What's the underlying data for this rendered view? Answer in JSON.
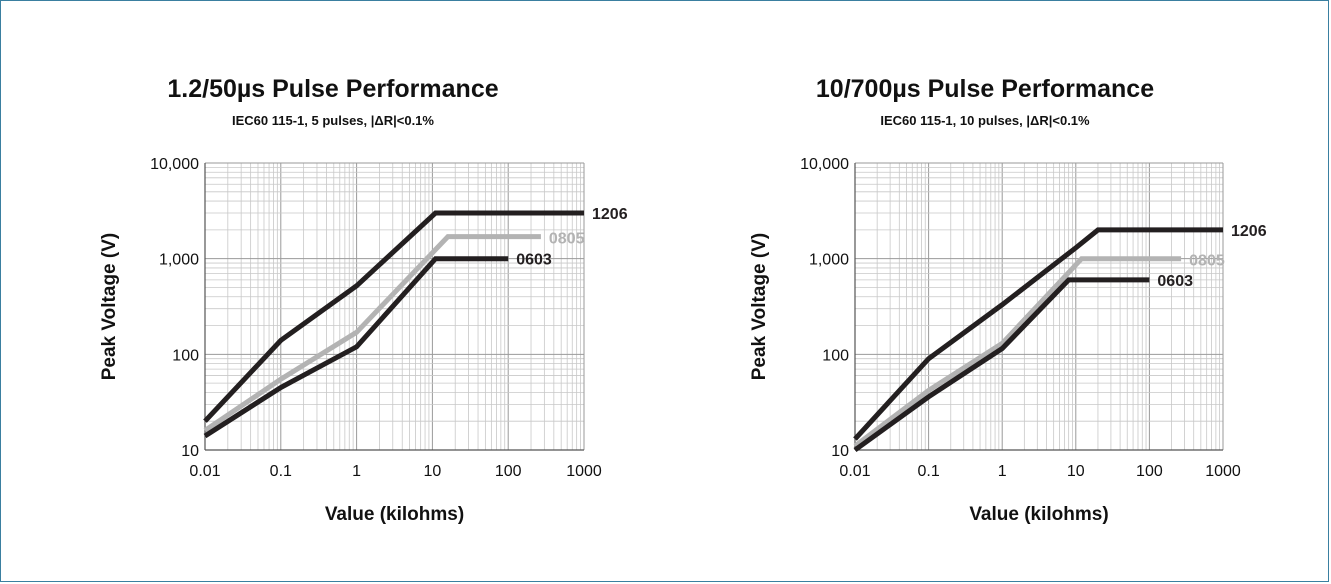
{
  "chart_data": [
    {
      "type": "line",
      "title": "1.2/50µs Pulse Performance",
      "subtitle": "IEC60 115-1, 5 pulses, |ΔR|<0.1%",
      "xlabel": "Value (kilohms)",
      "ylabel": "Peak Voltage (V)",
      "xscale": "log",
      "yscale": "log",
      "xlim": [
        0.01,
        1000
      ],
      "ylim": [
        10,
        10000
      ],
      "xticks": [
        "0.01",
        "0.1",
        "1",
        "10",
        "100",
        "1000"
      ],
      "yticks": [
        "10",
        "100",
        "1,000",
        "10,000"
      ],
      "grid": true,
      "series": [
        {
          "name": "1206",
          "color": "#231f20",
          "points": [
            [
              0.01,
              20
            ],
            [
              0.1,
              140
            ],
            [
              1,
              520
            ],
            [
              11,
              3000
            ],
            [
              1000,
              3000
            ]
          ]
        },
        {
          "name": "0805",
          "color": "#b3b3b3",
          "points": [
            [
              0.01,
              16
            ],
            [
              0.1,
              55
            ],
            [
              1,
              170
            ],
            [
              16,
              1700
            ],
            [
              270,
              1700
            ]
          ]
        },
        {
          "name": "0603",
          "color": "#231f20",
          "points": [
            [
              0.01,
              14
            ],
            [
              0.1,
              45
            ],
            [
              1,
              120
            ],
            [
              11,
              1000
            ],
            [
              100,
              1000
            ]
          ]
        }
      ]
    },
    {
      "type": "line",
      "title": "10/700µs Pulse Performance",
      "subtitle": "IEC60 115-1, 10 pulses, |ΔR|<0.1%",
      "xlabel": "Value (kilohms)",
      "ylabel": "Peak Voltage (V)",
      "xscale": "log",
      "yscale": "log",
      "xlim": [
        0.01,
        1000
      ],
      "ylim": [
        10,
        10000
      ],
      "xticks": [
        "0.01",
        "0.1",
        "1",
        "10",
        "100",
        "1000"
      ],
      "yticks": [
        "10",
        "100",
        "1,000",
        "10,000"
      ],
      "grid": true,
      "series": [
        {
          "name": "1206",
          "color": "#231f20",
          "points": [
            [
              0.01,
              13
            ],
            [
              0.1,
              90
            ],
            [
              1,
              330
            ],
            [
              10,
              1300
            ],
            [
              20,
              2000
            ],
            [
              1000,
              2000
            ]
          ]
        },
        {
          "name": "0805",
          "color": "#b3b3b3",
          "points": [
            [
              0.01,
              11
            ],
            [
              0.1,
              42
            ],
            [
              1,
              130
            ],
            [
              12,
              1000
            ],
            [
              270,
              1000
            ]
          ]
        },
        {
          "name": "0603",
          "color": "#231f20",
          "points": [
            [
              0.01,
              10
            ],
            [
              0.1,
              36
            ],
            [
              1,
              115
            ],
            [
              8,
              600
            ],
            [
              100,
              600
            ]
          ]
        }
      ]
    }
  ]
}
